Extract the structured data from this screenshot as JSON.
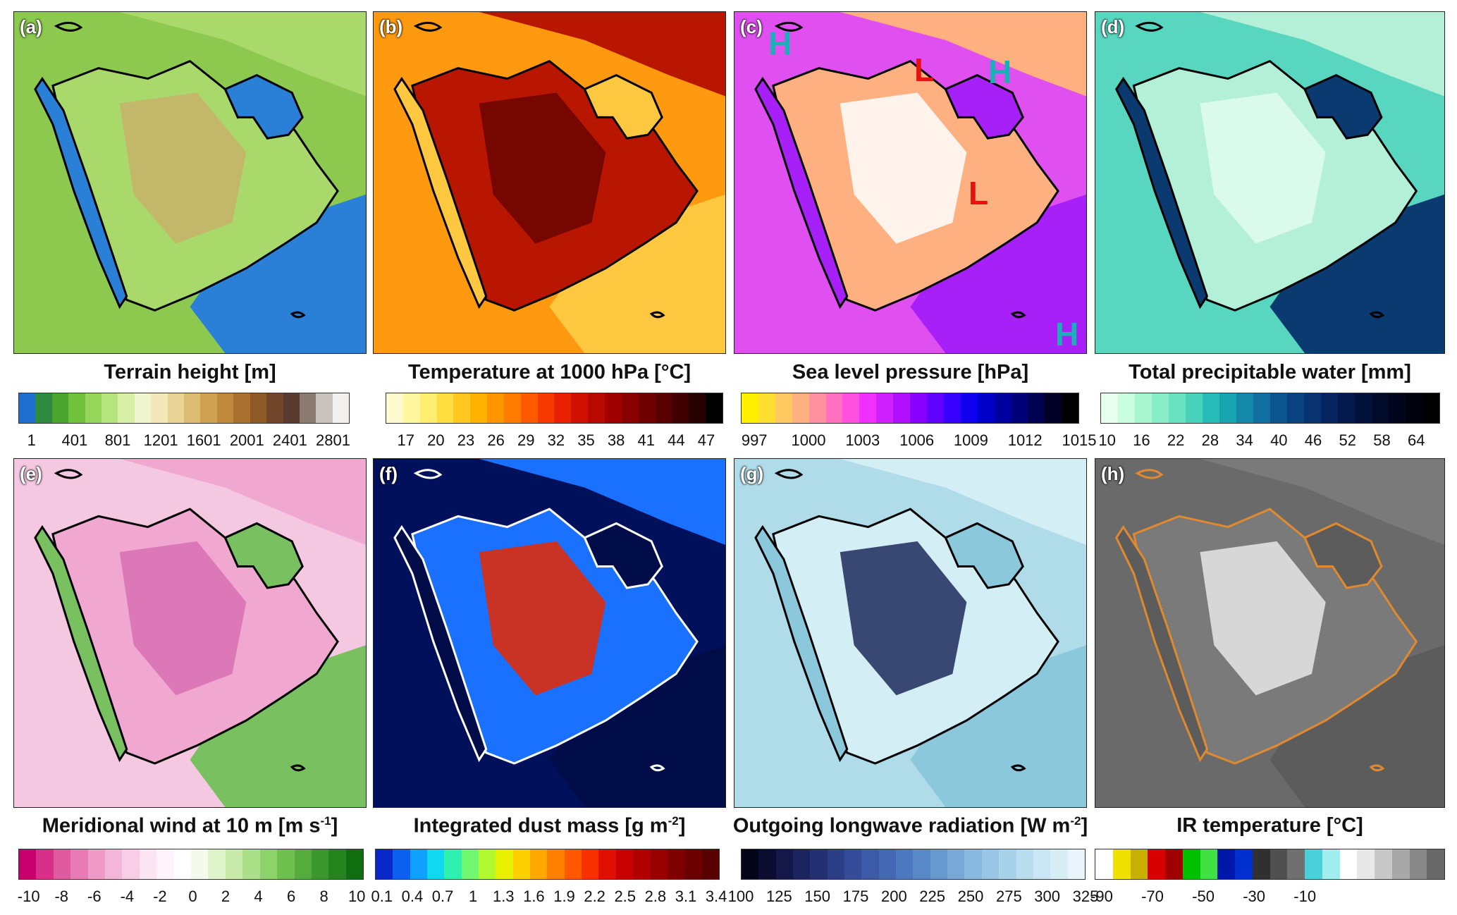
{
  "panels": [
    {
      "tag": "(a)",
      "title": "Terrain height [m]",
      "sup": "",
      "title_end": "",
      "ticks": [
        "1",
        "401",
        "801",
        "1201",
        "1601",
        "2001",
        "2401",
        "2801"
      ],
      "colors": [
        "#1f6fd1",
        "#2d8a3e",
        "#4ca52f",
        "#6fc23a",
        "#95d65a",
        "#b6e47e",
        "#d6f0a8",
        "#eef5cf",
        "#f2e8b8",
        "#e8d395",
        "#dcbc73",
        "#cfa252",
        "#bf8a3c",
        "#a9712e",
        "#8d5a27",
        "#70452a",
        "#5a3a2e",
        "#8a7a70",
        "#c9c2bd",
        "#f2f0ee"
      ],
      "map": {
        "bg": "#8cc94e",
        "land": "#a9d86b",
        "land2": "#c8b26a",
        "sea": "#2a7fd6",
        "line": "#000000"
      },
      "labels": []
    },
    {
      "tag": "(b)",
      "title": "Temperature at 1000 hPa [°C]",
      "sup": "",
      "title_end": "",
      "ticks": [
        "17",
        "20",
        "23",
        "26",
        "29",
        "32",
        "35",
        "38",
        "41",
        "44",
        "47"
      ],
      "colors": [
        "#fffbd0",
        "#fff6a0",
        "#ffee70",
        "#ffdf40",
        "#ffc820",
        "#ffb000",
        "#ff9600",
        "#ff7a00",
        "#ff5a00",
        "#f83a00",
        "#e82000",
        "#d01000",
        "#b80800",
        "#a00000",
        "#880000",
        "#700000",
        "#580000",
        "#400000",
        "#280000",
        "#000000"
      ],
      "map": {
        "bg": "#ff9a10",
        "land": "#b81600",
        "land2": "#6a0400",
        "sea": "#ffc840",
        "line": "#000000"
      },
      "labels": []
    },
    {
      "tag": "(c)",
      "title": "Sea level pressure [hPa]",
      "sup": "",
      "title_end": "",
      "ticks": [
        "997",
        "1000",
        "1003",
        "1006",
        "1009",
        "1012",
        "1015"
      ],
      "colors": [
        "#fff000",
        "#ffe030",
        "#ffc860",
        "#ffb080",
        "#ff90a0",
        "#ff70c0",
        "#ff50e0",
        "#f030ff",
        "#d020ff",
        "#b010ff",
        "#8800ff",
        "#6000ff",
        "#3800ff",
        "#1000f0",
        "#0000c8",
        "#0000a0",
        "#000078",
        "#000050",
        "#000028",
        "#000000"
      ],
      "map": {
        "bg": "#e050f0",
        "land": "#ffb080",
        "land2": "#ffffff",
        "sea": "#a820f8",
        "line": "#000000"
      },
      "labels": [
        {
          "text": "H",
          "color": "#1ab0b8"
        },
        {
          "text": "L",
          "color": "#e81010"
        },
        {
          "text": "H",
          "color": "#1ab0b8"
        },
        {
          "text": "L",
          "color": "#e81010"
        },
        {
          "text": "H",
          "color": "#1ab0b8"
        }
      ]
    },
    {
      "tag": "(d)",
      "title": "Total precipitable water [mm]",
      "sup": "",
      "title_end": "",
      "ticks": [
        "10",
        "16",
        "22",
        "28",
        "34",
        "40",
        "46",
        "52",
        "58",
        "64"
      ],
      "colors": [
        "#e8fff0",
        "#c8fde0",
        "#a8f6d0",
        "#88eec8",
        "#68e2c0",
        "#48d2bc",
        "#28bcb8",
        "#18a4b0",
        "#1488a8",
        "#106ea0",
        "#0c5690",
        "#0a4280",
        "#083270",
        "#062460",
        "#041a4c",
        "#03123a",
        "#020c2a",
        "#01061c",
        "#00030e",
        "#000000"
      ],
      "map": {
        "bg": "#58d6c0",
        "land": "#b4f0d8",
        "land2": "#e0fbf0",
        "sea": "#0a3a70",
        "line": "#000000"
      },
      "labels": []
    },
    {
      "tag": "(e)",
      "title": "Meridional wind at 10 m [m s",
      "sup": "-1",
      "title_end": "]",
      "ticks": [
        "-10",
        "-8",
        "-6",
        "-4",
        "-2",
        "0",
        "2",
        "4",
        "6",
        "8",
        "10"
      ],
      "colors": [
        "#c8006e",
        "#d63088",
        "#e05aa0",
        "#e87ab6",
        "#f09ac8",
        "#f4b6d8",
        "#f8cee6",
        "#fce4f2",
        "#fef4fa",
        "#ffffff",
        "#f4fbec",
        "#e0f4cc",
        "#c8eaa8",
        "#ace088",
        "#8ed26a",
        "#70c050",
        "#54ac3c",
        "#3a982c",
        "#24841e",
        "#106e10"
      ],
      "map": {
        "bg": "#f4c8e0",
        "land": "#f0a8d0",
        "land2": "#d870b4",
        "sea": "#78c060",
        "line": "#000000"
      },
      "labels": []
    },
    {
      "tag": "(f)",
      "title": "Integrated dust mass [g m",
      "sup": "-2",
      "title_end": "]",
      "ticks": [
        "0.1",
        "0.4",
        "0.7",
        "1",
        "1.3",
        "1.6",
        "1.9",
        "2.2",
        "2.5",
        "2.8",
        "3.1",
        "3.4"
      ],
      "colors": [
        "#0828c8",
        "#0c60f0",
        "#10a0ff",
        "#10d8f0",
        "#30f0b0",
        "#70f870",
        "#b0f830",
        "#e8f000",
        "#ffd000",
        "#ffa800",
        "#ff8000",
        "#ff5800",
        "#f83000",
        "#e01000",
        "#c80000",
        "#b00000",
        "#980000",
        "#800000",
        "#6c0000",
        "#5a0000"
      ],
      "map": {
        "bg": "#00105a",
        "land": "#1a70ff",
        "land2": "#e82800",
        "sea": "#000c48",
        "line": "#ffffff"
      },
      "labels": []
    },
    {
      "tag": "(g)",
      "title": "Outgoing longwave radiation [W m",
      "sup": "-2",
      "title_end": "]",
      "ticks": [
        "100",
        "125",
        "150",
        "175",
        "200",
        "225",
        "250",
        "275",
        "300",
        "325"
      ],
      "colors": [
        "#05051a",
        "#0c0c30",
        "#141848",
        "#1c2460",
        "#243074",
        "#2c3e88",
        "#344c9a",
        "#3c5aa8",
        "#4468b4",
        "#4c78c0",
        "#5888c8",
        "#6898d0",
        "#78a8d8",
        "#88b8de",
        "#98c6e4",
        "#a8d2ea",
        "#b8ddef",
        "#c8e6f3",
        "#d8eef7",
        "#e8f6fb"
      ],
      "map": {
        "bg": "#b0dcea",
        "land": "#d4eef5",
        "land2": "#1c2a5a",
        "sea": "#8cc8dc",
        "line": "#000000"
      },
      "labels": []
    },
    {
      "tag": "(h)",
      "title": "IR temperature [°C]",
      "sup": "",
      "title_end": "",
      "ticks": [
        "-90",
        "-70",
        "-50",
        "-30",
        "-10"
      ],
      "colors": [
        "#ffffff",
        "#f0e000",
        "#c8b000",
        "#d80000",
        "#a00000",
        "#00c000",
        "#40e040",
        "#0018a8",
        "#0030d0",
        "#303030",
        "#505050",
        "#707070",
        "#4ad0d8",
        "#a0eef0",
        "#ffffff",
        "#e8e8e8",
        "#c8c8c8",
        "#a8a8a8",
        "#888888",
        "#686868"
      ],
      "map": {
        "bg": "#6a6a6a",
        "land": "#7a7a7a",
        "land2": "#e8e8e8",
        "sea": "#5c5c5c",
        "line": "#e08a30"
      },
      "labels": []
    }
  ]
}
